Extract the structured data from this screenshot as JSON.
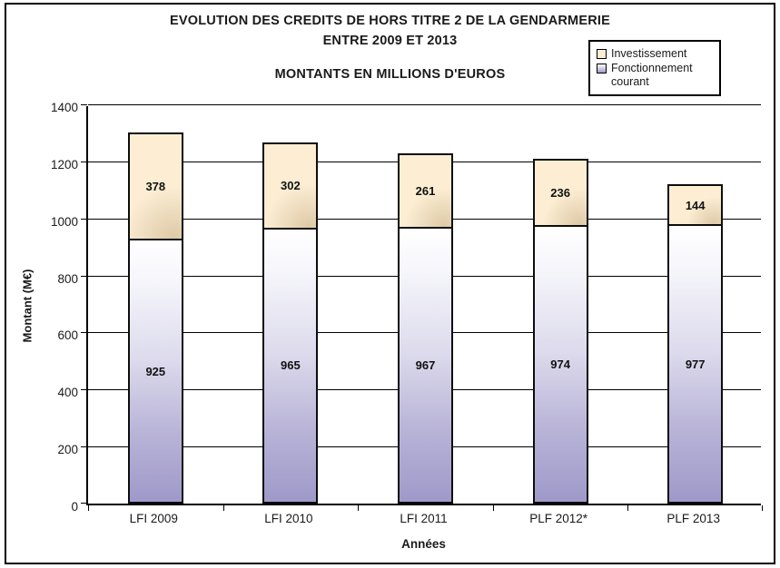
{
  "page": {
    "title_line1": "EVOLUTION DES CREDITS DE HORS TITRE 2 DE LA GENDARMERIE",
    "title_line2": "ENTRE 2009 ET 2013",
    "subtitle": "MONTANTS EN MILLIONS D'EUROS"
  },
  "legend": {
    "items": [
      {
        "label": "Investissement",
        "swatch": "investissement"
      },
      {
        "label": "Fonctionnement courant",
        "swatch": "fonctionnement"
      }
    ]
  },
  "colors": {
    "investissement_fill": "#FCEDD3",
    "investissement_shadow": "rgba(150,118,62,0.30)",
    "fonctionnement_top": "#FFFFFF",
    "fonctionnement_mid": "#DDDBEC",
    "fonctionnement_bottom": "#9F99C9",
    "bar_border": "#0d0d0d",
    "axis": "#000000"
  },
  "chart_data": {
    "type": "bar",
    "stacked": true,
    "title": "EVOLUTION DES CREDITS DE HORS TITRE 2 DE LA GENDARMERIE ENTRE 2009 ET 2013",
    "subtitle": "MONTANTS EN MILLIONS D'EUROS",
    "categories": [
      "LFI 2009",
      "LFI 2010",
      "LFI 2011",
      "PLF 2012*",
      "PLF 2013"
    ],
    "series": [
      {
        "name": "Fonctionnement courant",
        "values": [
          925,
          965,
          967,
          974,
          977
        ]
      },
      {
        "name": "Investissement",
        "values": [
          378,
          302,
          261,
          236,
          144
        ]
      }
    ],
    "xlabel": "Années",
    "ylabel": "Montant (M€)",
    "ylim": [
      0,
      1400
    ],
    "yticks": [
      0,
      200,
      400,
      600,
      800,
      1000,
      1200,
      1400
    ],
    "grid": true,
    "legend_position": "top-right"
  }
}
